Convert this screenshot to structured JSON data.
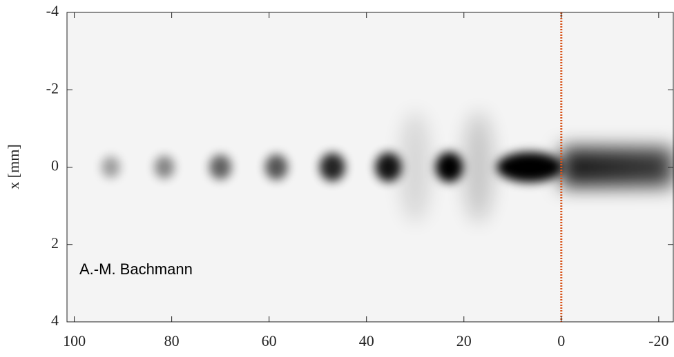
{
  "chart_data": {
    "type": "image",
    "ylabel": "x [mm]",
    "annotation": "A.-M. Bachmann",
    "xlim": [
      101.5,
      -23
    ],
    "ylim": [
      -4,
      4
    ],
    "xticks": [
      100,
      80,
      60,
      40,
      20,
      0,
      -20
    ],
    "yticks": [
      -4,
      -2,
      0,
      2,
      4
    ],
    "marker_x": 0,
    "marker_color": "#d9541a",
    "series": [
      {
        "color": "#000000",
        "x": [
          92.5,
          81.5,
          70,
          58.5,
          47,
          35.5,
          23,
          6.5
        ],
        "values": [
          0.35,
          0.45,
          0.6,
          0.65,
          0.85,
          0.92,
          1,
          1
        ]
      }
    ]
  }
}
